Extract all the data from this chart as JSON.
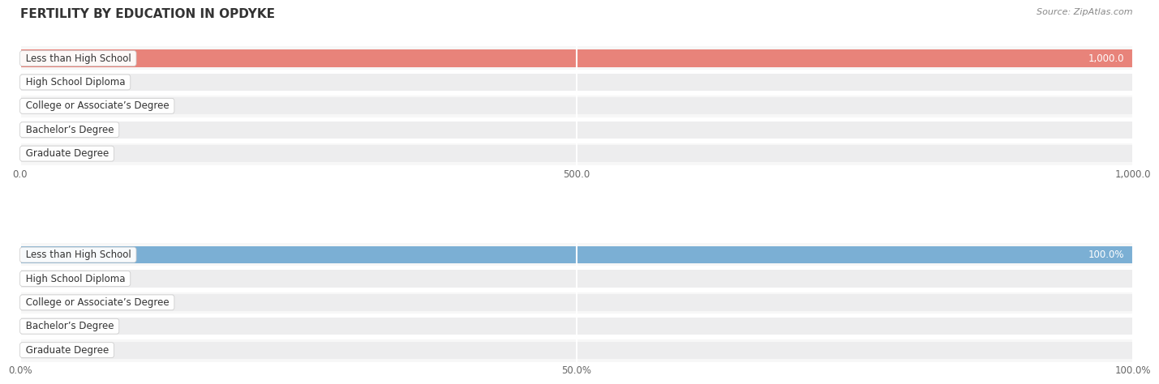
{
  "title": "FERTILITY BY EDUCATION IN OPDYKE",
  "source": "Source: ZipAtlas.com",
  "categories": [
    "Less than High School",
    "High School Diploma",
    "College or Associate’s Degree",
    "Bachelor’s Degree",
    "Graduate Degree"
  ],
  "values_abs": [
    1000.0,
    0.0,
    0.0,
    0.0,
    0.0
  ],
  "values_pct": [
    100.0,
    0.0,
    0.0,
    0.0,
    0.0
  ],
  "xlim_abs": [
    0,
    1000.0
  ],
  "xlim_pct": [
    0,
    100.0
  ],
  "xticks_abs": [
    0.0,
    500.0,
    1000.0
  ],
  "xticks_pct": [
    0.0,
    50.0,
    100.0
  ],
  "bar_color_abs": "#e8837a",
  "bar_color_pct": "#7bafd4",
  "bar_bg_color": "#ededee",
  "label_text_color": "#333333",
  "value_text_color_inside": "#ffffff",
  "value_text_color_outside": "#555555",
  "title_color": "#333333",
  "source_color": "#888888",
  "title_fontsize": 11,
  "label_fontsize": 8.5,
  "value_fontsize": 8.5,
  "tick_fontsize": 8.5,
  "bar_height": 0.72,
  "fig_bg_color": "#ffffff",
  "row_bg_even": "#f7f7f7",
  "row_bg_odd": "#ffffff"
}
